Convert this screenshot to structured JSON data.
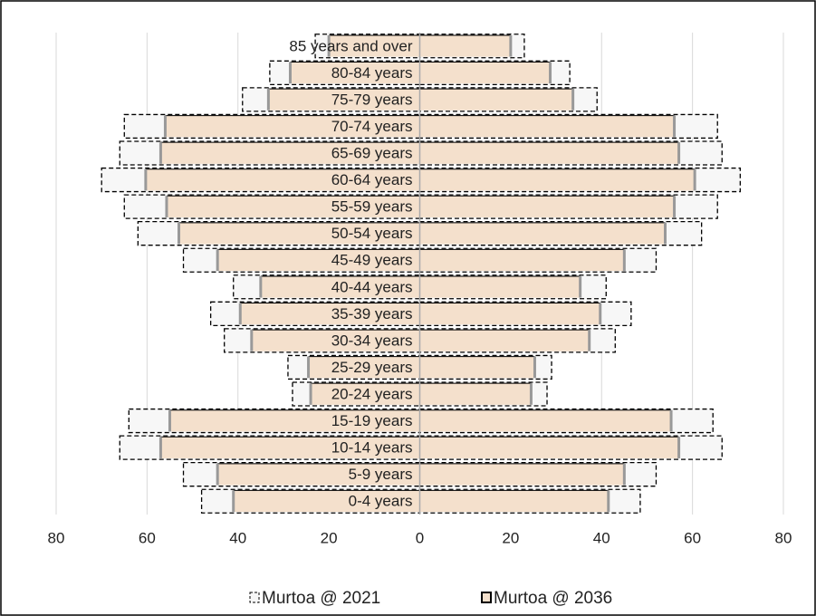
{
  "chart_data": {
    "type": "pyramid",
    "categories": [
      "85 years and over",
      "80-84 years",
      "75-79 years",
      "70-74 years",
      "65-69 years",
      "60-64 years",
      "55-59 years",
      "50-54 years",
      "45-49 years",
      "40-44 years",
      "35-39 years",
      "30-34 years",
      "25-29 years",
      "20-24 years",
      "15-19 years",
      "10-14 years",
      "5-9 years",
      "0-4 years"
    ],
    "series": [
      {
        "name": "Murtoa @ 2021",
        "color": "#f7f7f7",
        "style": "dashed",
        "left": [
          -23,
          -33,
          -39,
          -65,
          -66,
          -70,
          -65,
          -62,
          -52,
          -41,
          -46,
          -43,
          -29,
          -28,
          -64,
          -66,
          -52,
          -48
        ],
        "right": [
          23,
          33,
          39,
          65.5,
          66.5,
          70.5,
          65.5,
          62,
          52,
          41,
          46.5,
          43,
          29,
          28,
          64.5,
          66.5,
          52,
          48.5
        ]
      },
      {
        "name": "Murtoa @ 2036",
        "color": "#f4e0cc",
        "style": "solid",
        "left": [
          -20,
          -28.5,
          -33.3,
          -56,
          -57,
          -60.3,
          -55.7,
          -53,
          -44.5,
          -35,
          -39.5,
          -37,
          -24.5,
          -24,
          -55,
          -57,
          -44.5,
          -41
        ],
        "right": [
          20,
          28.7,
          33.7,
          56,
          57,
          60.5,
          56,
          54,
          45,
          35.3,
          39.7,
          37.3,
          25.3,
          24.5,
          55.3,
          57,
          45,
          41.5
        ]
      }
    ],
    "xlim": [
      -80,
      80
    ],
    "xticks": [
      {
        "value": -80,
        "label": "80"
      },
      {
        "value": -60,
        "label": "60"
      },
      {
        "value": -40,
        "label": "40"
      },
      {
        "value": -20,
        "label": "20"
      },
      0,
      20,
      40,
      60,
      80
    ],
    "grid": true,
    "legend": "bottom"
  }
}
